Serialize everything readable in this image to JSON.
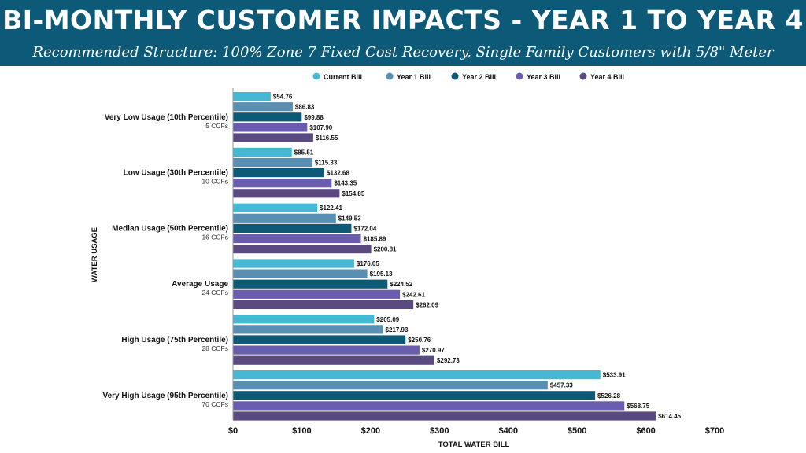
{
  "header": {
    "title": "BI-MONTHLY CUSTOMER IMPACTS - YEAR 1 TO YEAR 4",
    "subtitle": "Recommended Structure: 100% Zone 7 Fixed Cost Recovery, Single Family Customers with 5/8\" Meter"
  },
  "chart_data": {
    "type": "bar",
    "orientation": "horizontal",
    "title": "BI-MONTHLY CUSTOMER IMPACTS - YEAR 1 TO YEAR 4",
    "subtitle": "Recommended Structure: 100% Zone 7 Fixed Cost Recovery, Single Family Customers with 5/8\" Meter",
    "xlabel": "TOTAL WATER BILL",
    "ylabel": "WATER USAGE",
    "xlim": [
      0,
      700
    ],
    "xticks": [
      0,
      100,
      200,
      300,
      400,
      500,
      600,
      700
    ],
    "xtick_labels": [
      "$0",
      "$100",
      "$200",
      "$300",
      "$400",
      "$500",
      "$600",
      "$700"
    ],
    "grid": false,
    "legend_position": "top",
    "categories": [
      {
        "label": "Very Low Usage (10th Percentile)",
        "sub": "5 CCFs"
      },
      {
        "label": "Low Usage (30th Percentile)",
        "sub": "10 CCFs"
      },
      {
        "label": "Median Usage (50th Percentile)",
        "sub": "16 CCFs"
      },
      {
        "label": "Average Usage",
        "sub": "24 CCFs"
      },
      {
        "label": "High Usage (75th Percentile)",
        "sub": "28 CCFs"
      },
      {
        "label": "Very High Usage (95th Percentile)",
        "sub": "70 CCFs"
      }
    ],
    "series": [
      {
        "name": "Current Bill",
        "color": "#45b8d4",
        "values": [
          54.76,
          85.51,
          122.41,
          176.05,
          205.09,
          533.91
        ],
        "labels": [
          "$54.76",
          "$85.51",
          "$122.41",
          "$176.05",
          "$205.09",
          "$533.91"
        ]
      },
      {
        "name": "Year 1 Bill",
        "color": "#5a8fb4",
        "values": [
          86.83,
          115.33,
          149.53,
          195.13,
          217.93,
          457.33
        ],
        "labels": [
          "$86.83",
          "$115.33",
          "$149.53",
          "$195.13",
          "$217.93",
          "$457.33"
        ]
      },
      {
        "name": "Year 2 Bill",
        "color": "#0e5a76",
        "values": [
          99.88,
          132.68,
          172.04,
          224.52,
          250.76,
          526.28
        ],
        "labels": [
          "$99.88",
          "$132.68",
          "$172.04",
          "$224.52",
          "$250.76",
          "$526.28"
        ]
      },
      {
        "name": "Year 3 Bill",
        "color": "#6a5cae",
        "values": [
          107.9,
          143.35,
          185.89,
          242.61,
          270.97,
          568.75
        ],
        "labels": [
          "$107.90",
          "$143.35",
          "$185.89",
          "$242.61",
          "$270.97",
          "$568.75"
        ]
      },
      {
        "name": "Year 4 Bill",
        "color": "#5b4a80",
        "values": [
          116.55,
          154.85,
          200.81,
          262.09,
          292.73,
          614.45
        ],
        "labels": [
          "$116.55",
          "$154.85",
          "$200.81",
          "$262.09",
          "$292.73",
          "$614.45"
        ]
      }
    ]
  }
}
